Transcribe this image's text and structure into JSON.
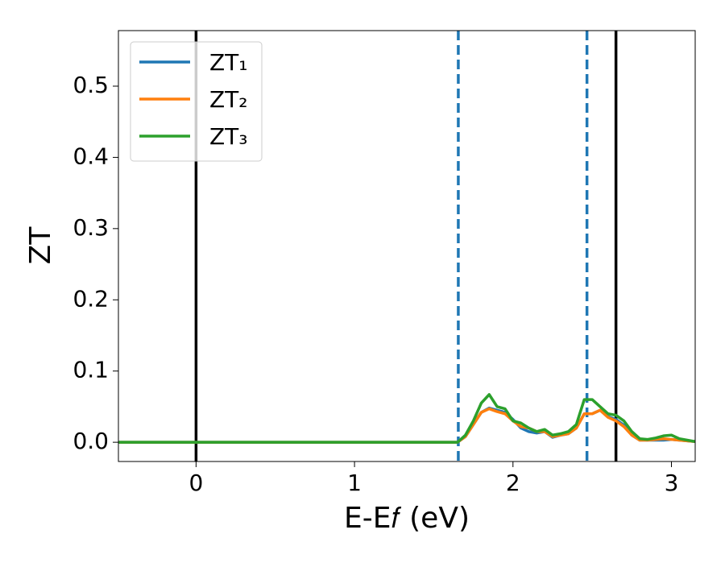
{
  "chart_data": {
    "type": "line",
    "xlabel": "E-E𝑓 (eV)",
    "ylabel": "ZT",
    "xlim": [
      -0.49,
      3.15
    ],
    "ylim": [
      -0.027,
      0.578
    ],
    "xticks": [
      0,
      1,
      2,
      3
    ],
    "yticks": [
      {
        "value": 0,
        "label": "0.0"
      },
      0.1,
      0.2,
      0.3,
      0.4,
      0.5
    ],
    "legend": "upper left",
    "vlines": [
      {
        "x": 0,
        "color": "#000000",
        "style": "solid"
      },
      {
        "x": 1.655,
        "color": "#1f77b4",
        "style": "dashed"
      },
      {
        "x": 2.467,
        "color": "#1f77b4",
        "style": "dashed"
      },
      {
        "x": 2.65,
        "color": "#000000",
        "style": "solid"
      }
    ],
    "x": [
      -0.49,
      1.6,
      1.65,
      1.7,
      1.75,
      1.8,
      1.85,
      1.9,
      1.95,
      2.0,
      2.05,
      2.1,
      2.15,
      2.2,
      2.25,
      2.3,
      2.35,
      2.4,
      2.45,
      2.5,
      2.55,
      2.6,
      2.65,
      2.7,
      2.75,
      2.8,
      2.85,
      2.9,
      2.95,
      3.0,
      3.05,
      3.1,
      3.15
    ],
    "series": [
      {
        "name": "ZT₁",
        "color": "#1f77b4",
        "values": [
          0,
          0,
          0,
          0.008,
          0.025,
          0.042,
          0.048,
          0.045,
          0.042,
          0.032,
          0.02,
          0.015,
          0.013,
          0.015,
          0.007,
          0.01,
          0.012,
          0.02,
          0.04,
          0.04,
          0.045,
          0.036,
          0.032,
          0.024,
          0.01,
          0.003,
          0.003,
          0.003,
          0.003,
          0.004,
          0.003,
          0.002,
          0.001
        ]
      },
      {
        "name": "ZT₂",
        "color": "#ff7f0e",
        "values": [
          0,
          0,
          0,
          0.008,
          0.025,
          0.042,
          0.047,
          0.043,
          0.04,
          0.03,
          0.022,
          0.02,
          0.015,
          0.015,
          0.008,
          0.01,
          0.012,
          0.02,
          0.04,
          0.04,
          0.045,
          0.035,
          0.03,
          0.022,
          0.01,
          0.003,
          0.003,
          0.004,
          0.005,
          0.004,
          0.003,
          0.002,
          0.001
        ]
      },
      {
        "name": "ZT₃",
        "color": "#2ca02c",
        "values": [
          0,
          0,
          0,
          0.01,
          0.03,
          0.055,
          0.067,
          0.05,
          0.047,
          0.03,
          0.027,
          0.02,
          0.015,
          0.018,
          0.01,
          0.012,
          0.015,
          0.025,
          0.06,
          0.06,
          0.05,
          0.04,
          0.038,
          0.03,
          0.015,
          0.005,
          0.004,
          0.006,
          0.009,
          0.01,
          0.005,
          0.003,
          0.001
        ]
      }
    ]
  }
}
